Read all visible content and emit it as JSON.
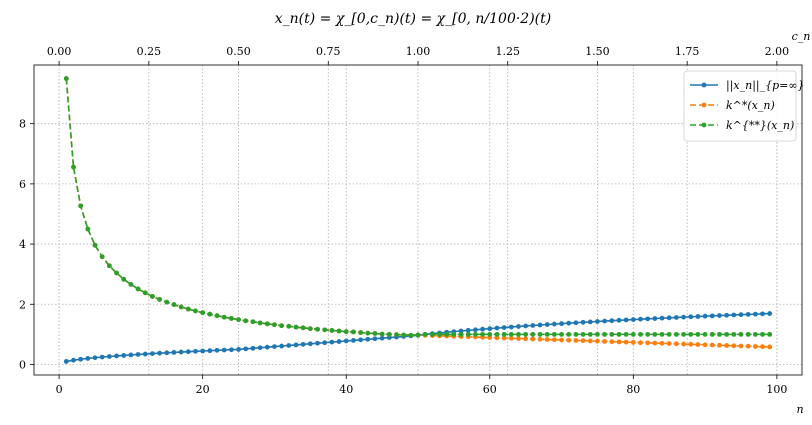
{
  "chart_data": {
    "type": "line",
    "title": "x_n(t) = χ_[0,c_n)(t) = χ_[0, n/100·2)(t)",
    "xlabel": "n",
    "x2label": "c_n",
    "ylabel": "",
    "xlim": [
      -3.5,
      103.5
    ],
    "ylim": [
      -0.35,
      9.95
    ],
    "x2lim": [
      -0.07,
      2.07
    ],
    "xticks": [
      0,
      20,
      40,
      60,
      80,
      100
    ],
    "x2ticks": [
      0.0,
      0.25,
      0.5,
      0.75,
      1.0,
      1.25,
      1.5,
      1.75,
      2.0
    ],
    "x2ticklabels": [
      "0.00",
      "0.25",
      "0.50",
      "0.75",
      "1.00",
      "1.25",
      "1.50",
      "1.75",
      "2.00"
    ],
    "yticks": [
      0,
      2,
      4,
      6,
      8
    ],
    "grid": true,
    "legend_position": "top-right",
    "x": [
      1,
      2,
      3,
      4,
      5,
      6,
      7,
      8,
      9,
      10,
      11,
      12,
      13,
      14,
      15,
      16,
      17,
      18,
      19,
      20,
      21,
      22,
      23,
      24,
      25,
      26,
      27,
      28,
      29,
      30,
      31,
      32,
      33,
      34,
      35,
      36,
      37,
      38,
      39,
      40,
      41,
      42,
      43,
      44,
      45,
      46,
      47,
      48,
      49,
      50,
      51,
      52,
      53,
      54,
      55,
      56,
      57,
      58,
      59,
      60,
      61,
      62,
      63,
      64,
      65,
      66,
      67,
      68,
      69,
      70,
      71,
      72,
      73,
      74,
      75,
      76,
      77,
      78,
      79,
      80,
      81,
      82,
      83,
      84,
      85,
      86,
      87,
      88,
      89,
      90,
      91,
      92,
      93,
      94,
      95,
      96,
      97,
      98,
      99
    ],
    "series": [
      {
        "name": "||x_n||_{p=∞}",
        "color": "#1f77b4",
        "linestyle": "solid",
        "values": [
          0.1,
          0.1414,
          0.1732,
          0.2,
          0.2236,
          0.2449,
          0.2646,
          0.2828,
          0.3,
          0.3162,
          0.3317,
          0.3464,
          0.3606,
          0.3742,
          0.3873,
          0.4,
          0.4123,
          0.4243,
          0.4359,
          0.4472,
          0.4583,
          0.469,
          0.4796,
          0.4899,
          0.5,
          0.5187,
          0.5374,
          0.5561,
          0.5748,
          0.5935,
          0.6122,
          0.6309,
          0.6496,
          0.6683,
          0.687,
          0.7057,
          0.7244,
          0.7431,
          0.7618,
          0.7805,
          0.7992,
          0.8179,
          0.8366,
          0.8553,
          0.874,
          0.8927,
          0.9114,
          0.9301,
          0.9488,
          0.9675,
          0.9986,
          1.0228,
          1.0462,
          1.0688,
          1.0907,
          1.1119,
          1.1325,
          1.1525,
          1.172,
          1.191,
          1.2095,
          1.2275,
          1.2451,
          1.2622,
          1.279,
          1.2953,
          1.3113,
          1.3269,
          1.3422,
          1.3572,
          1.3718,
          1.3862,
          1.4002,
          1.414,
          1.4275,
          1.4408,
          1.4538,
          1.4666,
          1.4792,
          1.4915,
          1.5036,
          1.5155,
          1.5272,
          1.5387,
          1.55,
          1.5612,
          1.5721,
          1.5829,
          1.5935,
          1.6039,
          1.6142,
          1.6243,
          1.6343,
          1.6441,
          1.6538,
          1.6633,
          1.6727,
          1.682,
          1.6912
        ]
      },
      {
        "name": "k^*(x_n)",
        "color": "#ff7f0e",
        "linestyle": "dashed",
        "values": [
          9.5,
          6.56,
          5.27,
          4.5,
          3.96,
          3.58,
          3.28,
          3.04,
          2.83,
          2.66,
          2.51,
          2.38,
          2.26,
          2.16,
          2.07,
          1.99,
          1.91,
          1.84,
          1.78,
          1.72,
          1.67,
          1.62,
          1.57,
          1.53,
          1.49,
          1.45,
          1.42,
          1.38,
          1.35,
          1.32,
          1.29,
          1.27,
          1.24,
          1.22,
          1.19,
          1.17,
          1.15,
          1.13,
          1.11,
          1.09,
          1.08,
          1.06,
          1.04,
          1.03,
          1.01,
          1.0,
          0.99,
          0.98,
          0.97,
          0.98,
          0.97,
          0.961,
          0.952,
          0.943,
          0.935,
          0.926,
          0.918,
          0.91,
          0.902,
          0.894,
          0.886,
          0.878,
          0.87,
          0.862,
          0.854,
          0.846,
          0.838,
          0.83,
          0.822,
          0.814,
          0.806,
          0.798,
          0.79,
          0.782,
          0.774,
          0.766,
          0.758,
          0.75,
          0.742,
          0.734,
          0.726,
          0.718,
          0.71,
          0.702,
          0.694,
          0.686,
          0.678,
          0.67,
          0.662,
          0.654,
          0.646,
          0.638,
          0.63,
          0.622,
          0.614,
          0.606,
          0.598,
          0.59,
          0.582
        ]
      },
      {
        "name": "k^{**}(x_n)",
        "color": "#2ca02c",
        "linestyle": "dashed",
        "values": [
          9.5,
          6.56,
          5.27,
          4.5,
          3.96,
          3.58,
          3.28,
          3.04,
          2.83,
          2.66,
          2.51,
          2.38,
          2.26,
          2.16,
          2.07,
          1.99,
          1.91,
          1.84,
          1.78,
          1.72,
          1.67,
          1.62,
          1.57,
          1.53,
          1.49,
          1.45,
          1.42,
          1.38,
          1.35,
          1.32,
          1.29,
          1.27,
          1.24,
          1.22,
          1.19,
          1.17,
          1.15,
          1.13,
          1.11,
          1.09,
          1.08,
          1.06,
          1.04,
          1.03,
          1.01,
          1.0,
          0.99,
          0.98,
          0.97,
          0.98,
          1.0,
          1.0,
          1.0,
          1.0,
          1.0,
          1.0,
          1.0,
          1.0,
          1.0,
          1.0,
          1.0,
          1.0,
          1.0,
          1.0,
          1.0,
          1.0,
          1.0,
          1.0,
          1.0,
          1.0,
          1.0,
          1.0,
          1.0,
          1.0,
          1.0,
          1.0,
          1.0,
          1.0,
          1.0,
          1.0,
          1.0,
          1.0,
          1.0,
          1.0,
          1.0,
          1.0,
          1.0,
          1.0,
          1.0,
          1.0,
          1.0,
          1.0,
          1.0,
          1.0,
          1.0,
          1.0,
          1.0,
          1.0,
          1.0
        ]
      }
    ]
  }
}
